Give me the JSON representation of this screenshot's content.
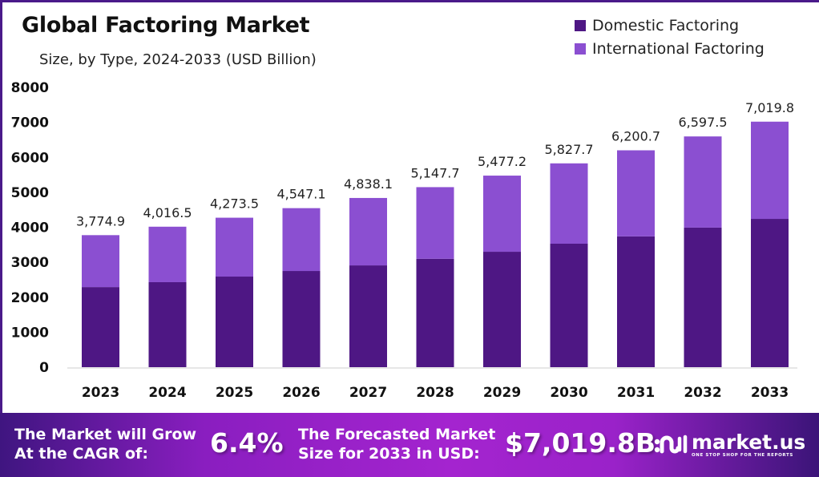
{
  "chart_data": {
    "type": "bar",
    "stacked": true,
    "title": "Global Factoring Market",
    "subtitle": "Size, by Type, 2024-2033 (USD Billion)",
    "xlabel": "",
    "ylabel": "",
    "ylim": [
      0,
      8000
    ],
    "yticks": [
      "0",
      "1000",
      "2000",
      "3000",
      "4000",
      "5000",
      "6000",
      "7000",
      "8000"
    ],
    "grid": false,
    "legend_position": "top-right",
    "categories": [
      "2023",
      "2024",
      "2025",
      "2026",
      "2027",
      "2028",
      "2029",
      "2030",
      "2031",
      "2032",
      "2033"
    ],
    "totals": [
      3774.9,
      4016.5,
      4273.5,
      4547.1,
      4838.1,
      5147.7,
      5477.2,
      5827.7,
      6200.7,
      6597.5,
      7019.8
    ],
    "total_labels": [
      "3,774.9",
      "4,016.5",
      "4,273.5",
      "4,547.1",
      "4,838.1",
      "5,147.7",
      "5,477.2",
      "5,827.7",
      "6,200.7",
      "6,597.5",
      "7,019.8"
    ],
    "series": [
      {
        "name": "Domestic Factoring",
        "color": "#4e1784",
        "values": [
          2290,
          2430,
          2590,
          2750,
          2910,
          3100,
          3300,
          3530,
          3740,
          3990,
          4240
        ]
      },
      {
        "name": "International Factoring",
        "color": "#8b4fd1",
        "values": [
          1484.9,
          1586.5,
          1683.5,
          1797.1,
          1928.1,
          2047.7,
          2177.2,
          2297.7,
          2460.7,
          2607.5,
          2779.8
        ]
      }
    ]
  },
  "banner": {
    "cagr_text_line1": "The Market will Grow",
    "cagr_text_line2": "At the CAGR of:",
    "cagr_value": "6.4%",
    "forecast_text_line1": "The Forecasted Market",
    "forecast_text_line2": "Size for 2033 in USD:",
    "forecast_value": "$7,019.8B",
    "logo_name": "market.us",
    "logo_tagline": "ONE STOP SHOP FOR THE REPORTS"
  }
}
